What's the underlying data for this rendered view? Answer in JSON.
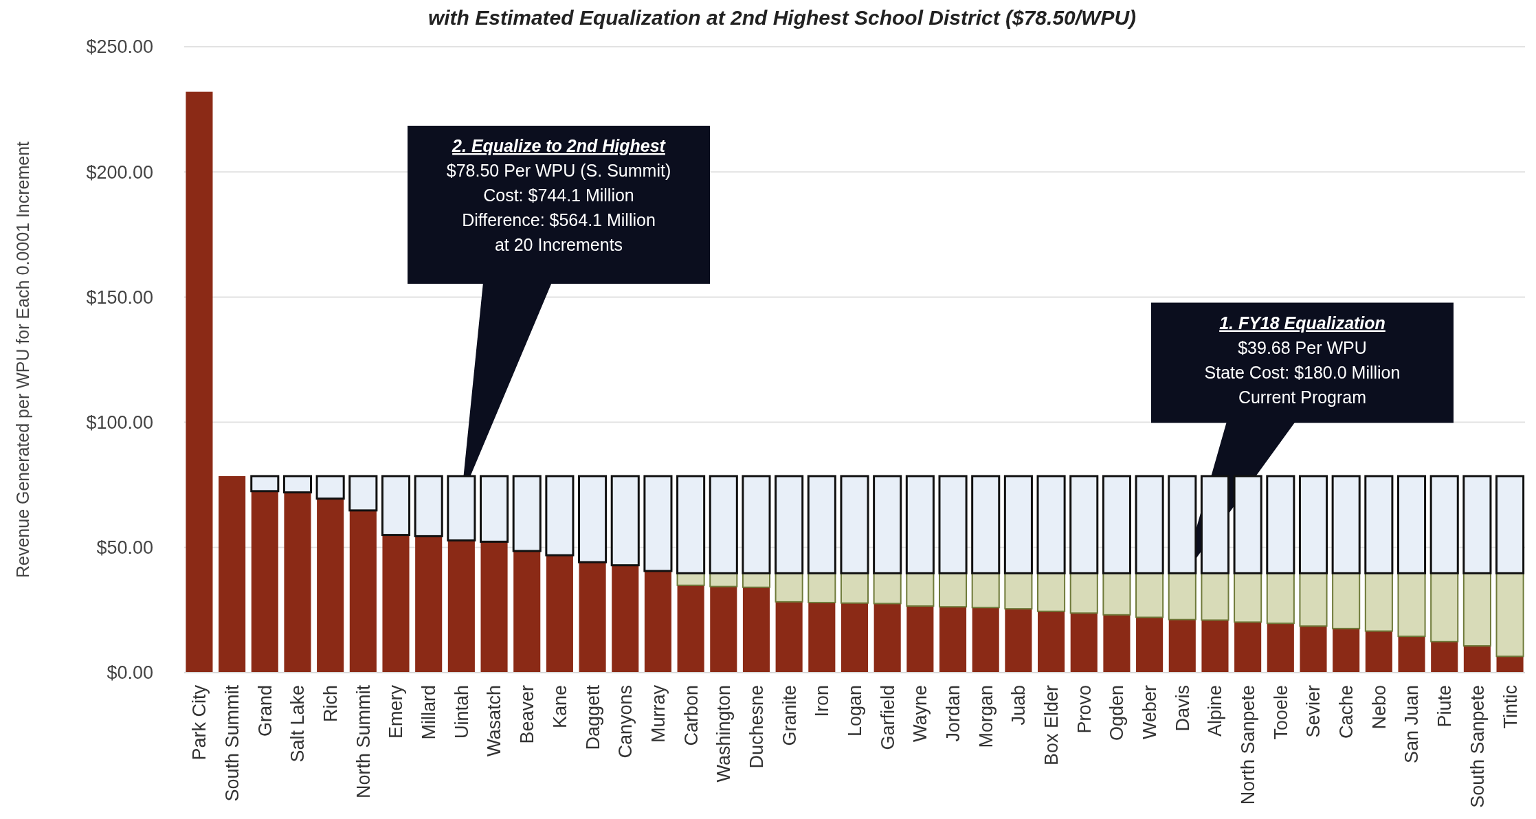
{
  "chart_data": {
    "type": "bar",
    "stacked": true,
    "title": "with Estimated Equalization at 2nd Highest School District ($78.50/WPU)",
    "ylabel": "Revenue Generated per WPU for Each 0.0001 Increment",
    "categories": [
      "Park City",
      "South Summit",
      "Grand",
      "Salt Lake",
      "Rich",
      "North Summit",
      "Emery",
      "Millard",
      "Uintah",
      "Wasatch",
      "Beaver",
      "Kane",
      "Daggett",
      "Canyons",
      "Murray",
      "Carbon",
      "Washington",
      "Duchesne",
      "Granite",
      "Iron",
      "Logan",
      "Garfield",
      "Wayne",
      "Jordan",
      "Morgan",
      "Juab",
      "Box Elder",
      "Provo",
      "Ogden",
      "Weber",
      "Davis",
      "Alpine",
      "North Sanpete",
      "Tooele",
      "Sevier",
      "Cache",
      "Nebo",
      "San Juan",
      "Piute",
      "South Sanpete",
      "Tintic"
    ],
    "series": [
      {
        "color": "#8b2a16",
        "values": [
          232,
          78.5,
          72.5,
          72,
          69.5,
          64.8,
          55,
          54.5,
          52.8,
          52.3,
          48.6,
          46.9,
          44.1,
          42.9,
          40.6,
          34.9,
          34.4,
          34.1,
          28.3,
          28,
          27.8,
          27.6,
          26.6,
          26.3,
          26,
          25.5,
          24.5,
          23.8,
          23.1,
          22.1,
          21.2,
          21,
          20.2,
          19.7,
          18.6,
          17.6,
          16.6,
          14.5,
          12.4,
          10.7,
          6.5
        ]
      },
      {
        "color": "#d8dbb8",
        "values": [
          0,
          0,
          0,
          0,
          0,
          0,
          0,
          0,
          0,
          0,
          0,
          0,
          0,
          0,
          0,
          4.8,
          5.3,
          5.6,
          11.4,
          11.7,
          11.9,
          12.1,
          13.1,
          13.4,
          13.7,
          14.2,
          15.2,
          15.9,
          16.6,
          17.6,
          18.5,
          18.7,
          19.5,
          20,
          21.1,
          22.1,
          23.1,
          25.2,
          27.3,
          29,
          33.2
        ]
      },
      {
        "color": "#e8eff8",
        "values": [
          0,
          0,
          6,
          6.5,
          9,
          13.7,
          23.5,
          24,
          25.7,
          26.2,
          29.9,
          31.6,
          34.4,
          35.6,
          37.9,
          38.8,
          38.8,
          38.8,
          38.8,
          38.8,
          38.8,
          38.8,
          38.8,
          38.8,
          38.8,
          38.8,
          38.8,
          38.8,
          38.8,
          38.8,
          38.8,
          38.8,
          38.8,
          38.8,
          38.8,
          38.8,
          38.8,
          38.8,
          38.8,
          38.8,
          38.8
        ]
      }
    ],
    "ylim": [
      0,
      250
    ],
    "yticks": [
      {
        "value": 0,
        "label": "$0.00"
      },
      {
        "value": 50,
        "label": "$50.00"
      },
      {
        "value": 100,
        "label": "$100.00"
      },
      {
        "value": 150,
        "label": "$150.00"
      },
      {
        "value": 200,
        "label": "$200.00"
      },
      {
        "value": 250,
        "label": "$250.00"
      }
    ],
    "grid": "y",
    "annotations": [
      "2. Equalize to 2nd Highest\n$78.50 Per WPU (S. Summit)\nCost: $744.1 Million\nDifference: $564.1 Million\nat 20 Increments",
      "1. FY18 Equalization\n$39.68 Per WPU\nState Cost: $180.0 Million\nCurrent Program"
    ]
  }
}
